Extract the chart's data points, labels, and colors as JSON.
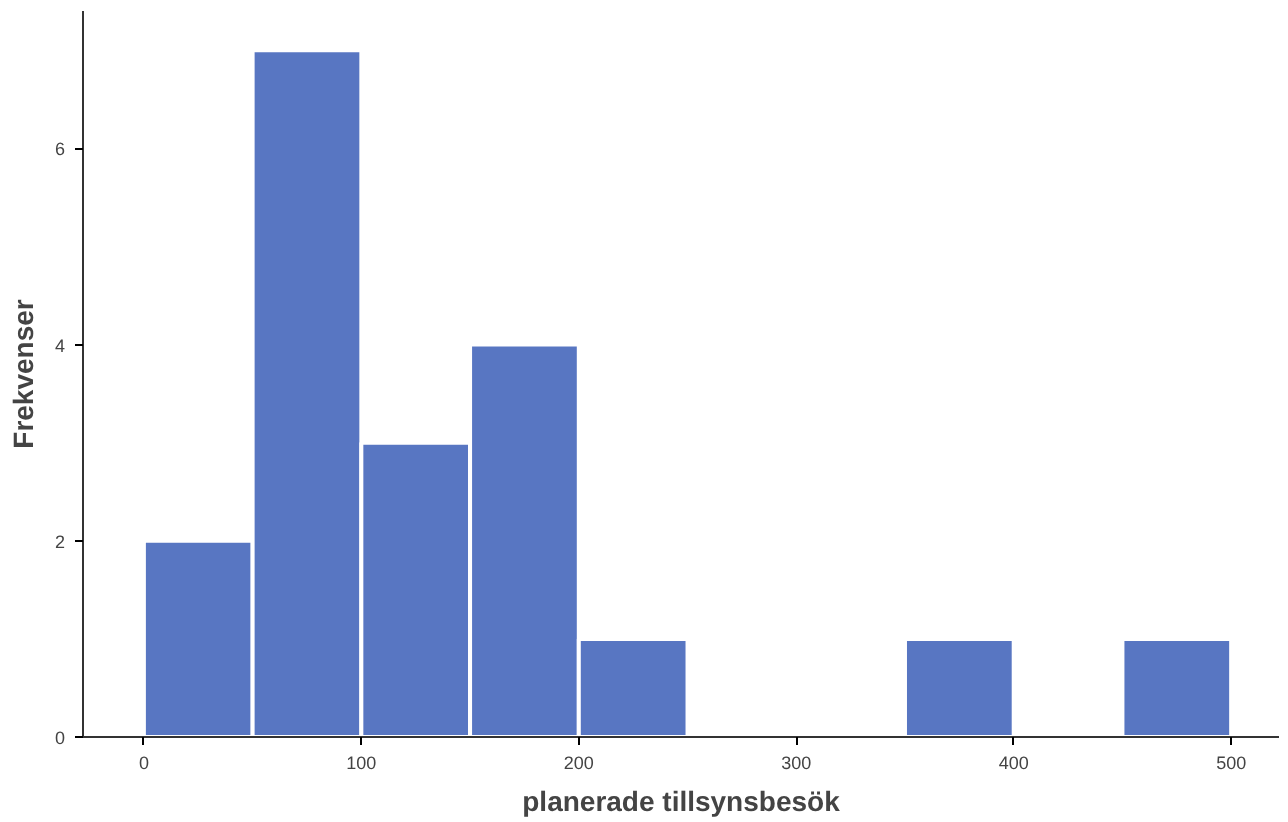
{
  "chart_data": {
    "type": "histogram",
    "xlabel": "planerade tillsynsbesök",
    "ylabel": "Frekvenser",
    "bins": [
      0,
      50,
      100,
      150,
      200,
      250,
      300,
      350,
      400,
      450,
      500
    ],
    "values": [
      2,
      7,
      3,
      4,
      1,
      0,
      0,
      1,
      0,
      1
    ],
    "color": "#5876c2",
    "xlim": [
      -28,
      522
    ],
    "ylim": [
      0,
      7.4
    ],
    "xticks": [
      0,
      100,
      200,
      300,
      400,
      500
    ],
    "yticks": [
      0,
      2,
      4,
      6
    ],
    "grid": false
  }
}
